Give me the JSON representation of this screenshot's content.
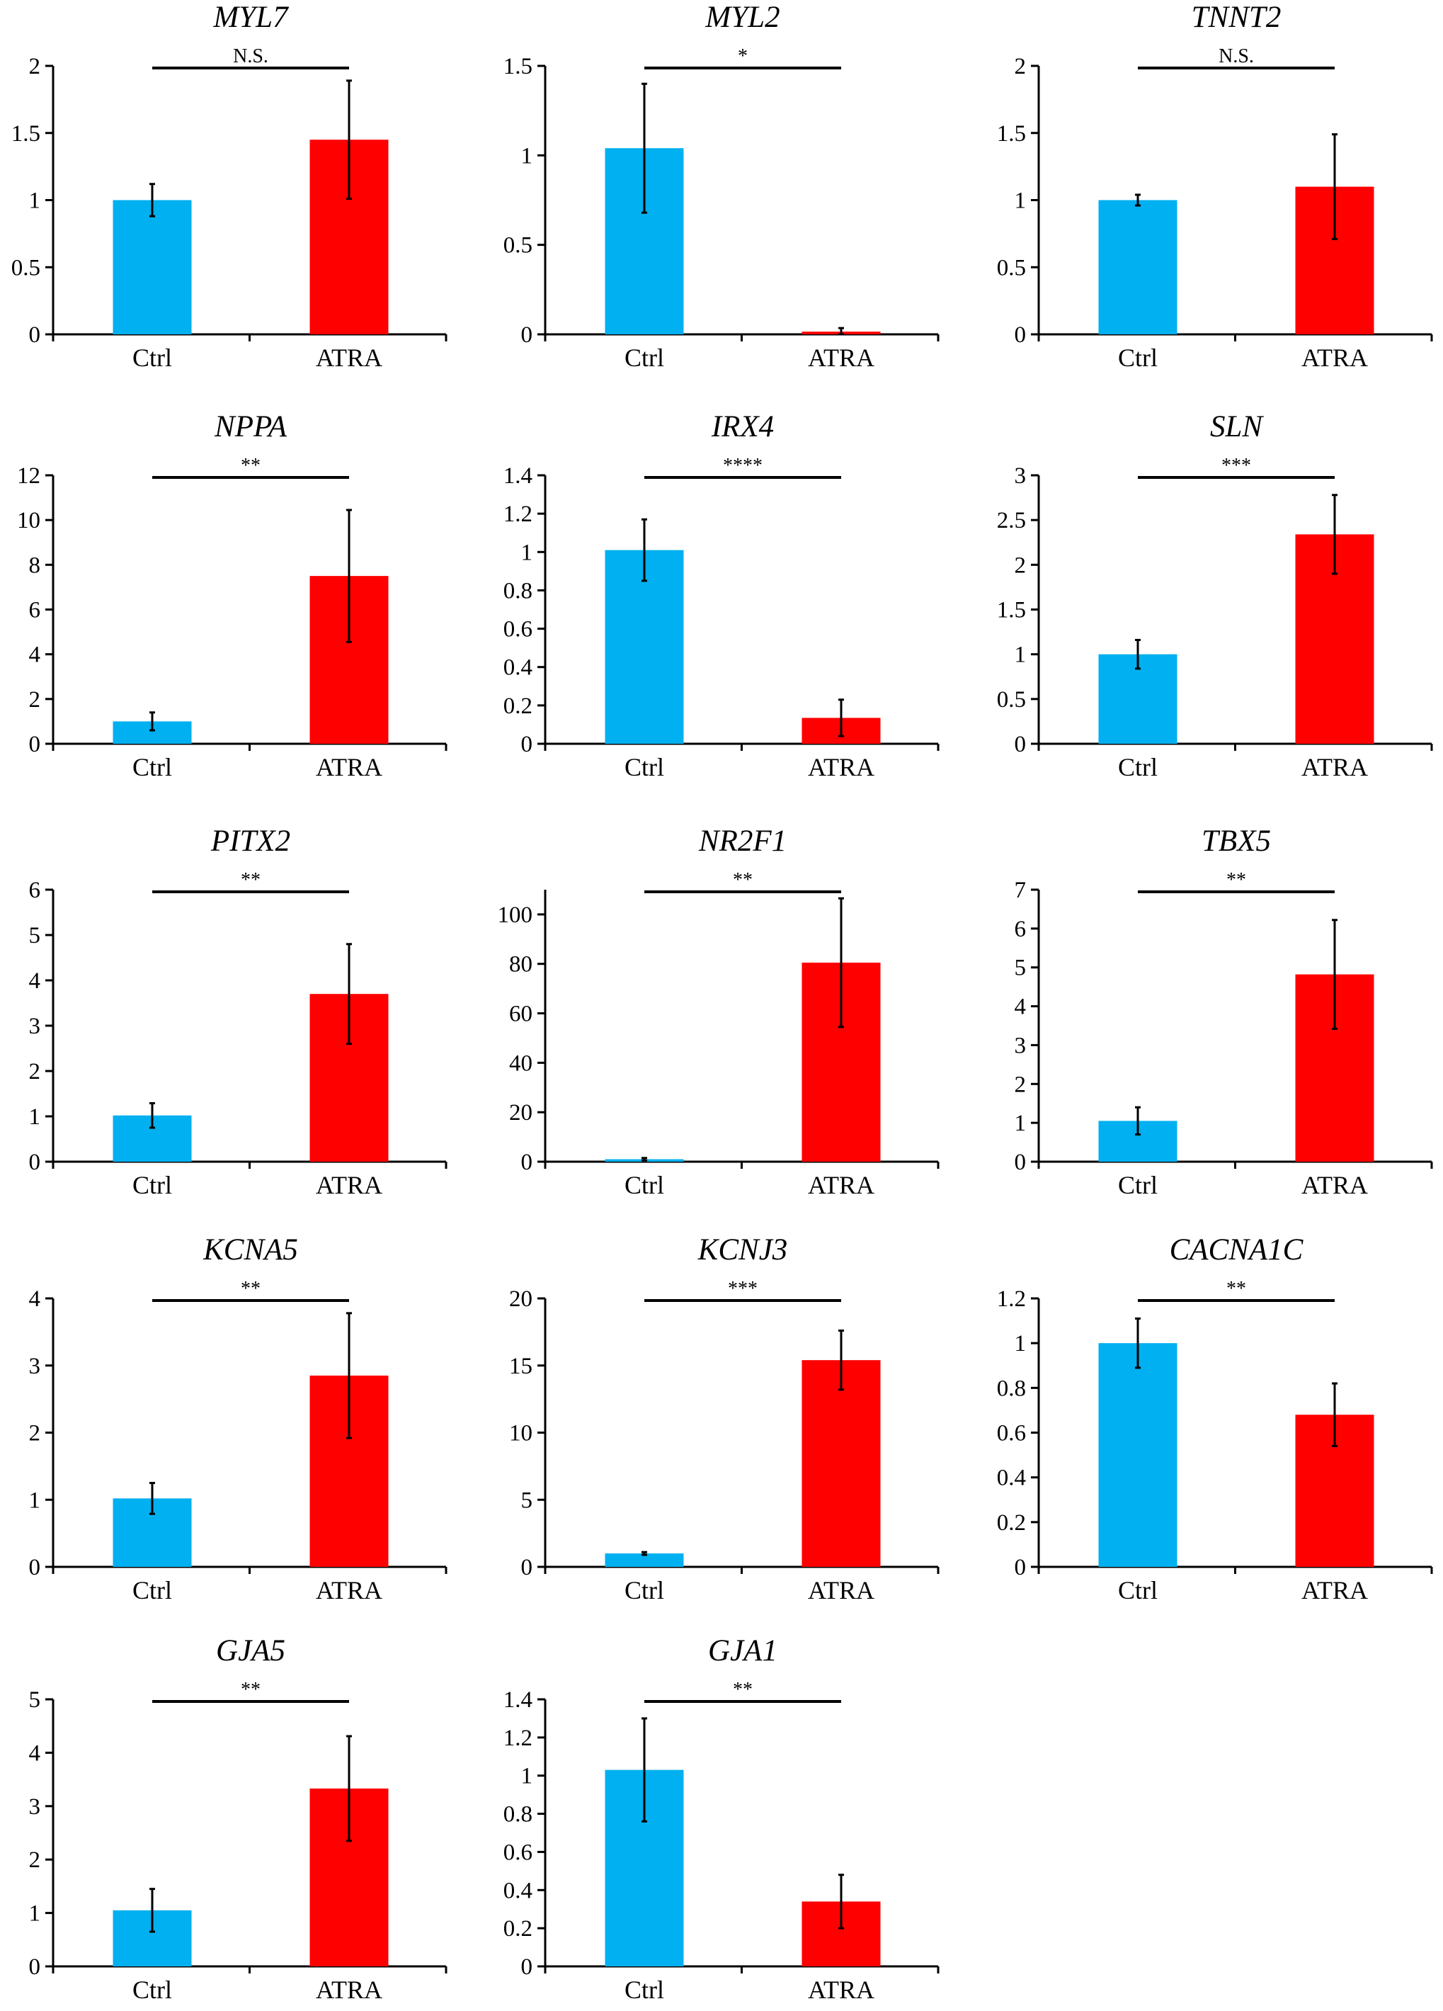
{
  "colors": {
    "ctrl": "#00b0f0",
    "atra": "#ff0000",
    "axis": "#000000"
  },
  "chart_data": [
    {
      "type": "bar",
      "title": "MYL7",
      "categories": [
        "Ctrl",
        "ATRA"
      ],
      "values": [
        1.0,
        1.45
      ],
      "errors": [
        0.12,
        0.44
      ],
      "significance": "N.S.",
      "ylim": [
        0,
        2
      ],
      "yticks": [
        "0",
        "0.5",
        "1",
        "1.5",
        "2"
      ],
      "xlabel": "",
      "ylabel": ""
    },
    {
      "type": "bar",
      "title": "MYL2",
      "categories": [
        "Ctrl",
        "ATRA"
      ],
      "values": [
        1.04,
        0.015
      ],
      "errors": [
        0.36,
        0.02
      ],
      "significance": "*",
      "ylim": [
        0,
        1.5
      ],
      "yticks": [
        "0",
        "0.5",
        "1",
        "1.5"
      ],
      "xlabel": "",
      "ylabel": ""
    },
    {
      "type": "bar",
      "title": "TNNT2",
      "categories": [
        "Ctrl",
        "ATRA"
      ],
      "values": [
        1.0,
        1.1
      ],
      "errors": [
        0.04,
        0.39
      ],
      "significance": "N.S.",
      "ylim": [
        0,
        2
      ],
      "yticks": [
        "0",
        "0.5",
        "1",
        "1.5",
        "2"
      ],
      "xlabel": "",
      "ylabel": ""
    },
    {
      "type": "bar",
      "title": "NPPA",
      "categories": [
        "Ctrl",
        "ATRA"
      ],
      "values": [
        1.0,
        7.5
      ],
      "errors": [
        0.4,
        2.95
      ],
      "significance": "**",
      "ylim": [
        0,
        12
      ],
      "yticks": [
        "0",
        "2",
        "4",
        "6",
        "8",
        "10",
        "12"
      ],
      "xlabel": "",
      "ylabel": ""
    },
    {
      "type": "bar",
      "title": "IRX4",
      "categories": [
        "Ctrl",
        "ATRA"
      ],
      "values": [
        1.01,
        0.135
      ],
      "errors": [
        0.16,
        0.095
      ],
      "significance": "****",
      "ylim": [
        0,
        1.4
      ],
      "yticks": [
        "0",
        "0.2",
        "0.4",
        "0.6",
        "0.8",
        "1",
        "1.2",
        "1.4"
      ],
      "xlabel": "",
      "ylabel": ""
    },
    {
      "type": "bar",
      "title": "SLN",
      "categories": [
        "Ctrl",
        "ATRA"
      ],
      "values": [
        1.0,
        2.34
      ],
      "errors": [
        0.16,
        0.44
      ],
      "significance": "***",
      "ylim": [
        0,
        3
      ],
      "yticks": [
        "0",
        "0.5",
        "1",
        "1.5",
        "2",
        "2.5",
        "3"
      ],
      "xlabel": "",
      "ylabel": ""
    },
    {
      "type": "bar",
      "title": "PITX2",
      "categories": [
        "Ctrl",
        "ATRA"
      ],
      "values": [
        1.02,
        3.7
      ],
      "errors": [
        0.27,
        1.1
      ],
      "significance": "**",
      "ylim": [
        0,
        6
      ],
      "yticks": [
        "0",
        "1",
        "2",
        "3",
        "4",
        "5",
        "6"
      ],
      "xlabel": "",
      "ylabel": ""
    },
    {
      "type": "bar",
      "title": "NR2F1",
      "categories": [
        "Ctrl",
        "ATRA"
      ],
      "values": [
        1.0,
        80.5
      ],
      "errors": [
        0.5,
        26.0
      ],
      "significance": "**",
      "ylim": [
        0,
        110
      ],
      "yticks": [
        "0",
        "20",
        "40",
        "60",
        "80",
        "100"
      ],
      "xlabel": "",
      "ylabel": ""
    },
    {
      "type": "bar",
      "title": "TBX5",
      "categories": [
        "Ctrl",
        "ATRA"
      ],
      "values": [
        1.05,
        4.82
      ],
      "errors": [
        0.35,
        1.4
      ],
      "significance": "**",
      "ylim": [
        0,
        7
      ],
      "yticks": [
        "0",
        "1",
        "2",
        "3",
        "4",
        "5",
        "6",
        "7"
      ],
      "xlabel": "",
      "ylabel": ""
    },
    {
      "type": "bar",
      "title": "KCNA5",
      "categories": [
        "Ctrl",
        "ATRA"
      ],
      "values": [
        1.02,
        2.85
      ],
      "errors": [
        0.23,
        0.93
      ],
      "significance": "**",
      "ylim": [
        0,
        4
      ],
      "yticks": [
        "0",
        "1",
        "2",
        "3",
        "4"
      ],
      "xlabel": "",
      "ylabel": ""
    },
    {
      "type": "bar",
      "title": "KCNJ3",
      "categories": [
        "Ctrl",
        "ATRA"
      ],
      "values": [
        1.0,
        15.4
      ],
      "errors": [
        0.1,
        2.2
      ],
      "significance": "***",
      "ylim": [
        0,
        20
      ],
      "yticks": [
        "0",
        "5",
        "10",
        "15",
        "20"
      ],
      "xlabel": "",
      "ylabel": ""
    },
    {
      "type": "bar",
      "title": "CACNA1C",
      "categories": [
        "Ctrl",
        "ATRA"
      ],
      "values": [
        1.0,
        0.68
      ],
      "errors": [
        0.11,
        0.14
      ],
      "significance": "**",
      "ylim": [
        0,
        1.2
      ],
      "yticks": [
        "0",
        "0.2",
        "0.4",
        "0.6",
        "0.8",
        "1",
        "1.2"
      ],
      "xlabel": "",
      "ylabel": ""
    },
    {
      "type": "bar",
      "title": "GJA5",
      "categories": [
        "Ctrl",
        "ATRA"
      ],
      "values": [
        1.05,
        3.33
      ],
      "errors": [
        0.4,
        0.98
      ],
      "significance": "**",
      "ylim": [
        0,
        5
      ],
      "yticks": [
        "0",
        "1",
        "2",
        "3",
        "4",
        "5"
      ],
      "xlabel": "",
      "ylabel": ""
    },
    {
      "type": "bar",
      "title": "GJA1",
      "categories": [
        "Ctrl",
        "ATRA"
      ],
      "values": [
        1.03,
        0.34
      ],
      "errors": [
        0.27,
        0.14
      ],
      "significance": "**",
      "ylim": [
        0,
        1.4
      ],
      "yticks": [
        "0",
        "0.2",
        "0.4",
        "0.6",
        "0.8",
        "1",
        "1.2",
        "1.4"
      ],
      "xlabel": "",
      "ylabel": ""
    }
  ]
}
